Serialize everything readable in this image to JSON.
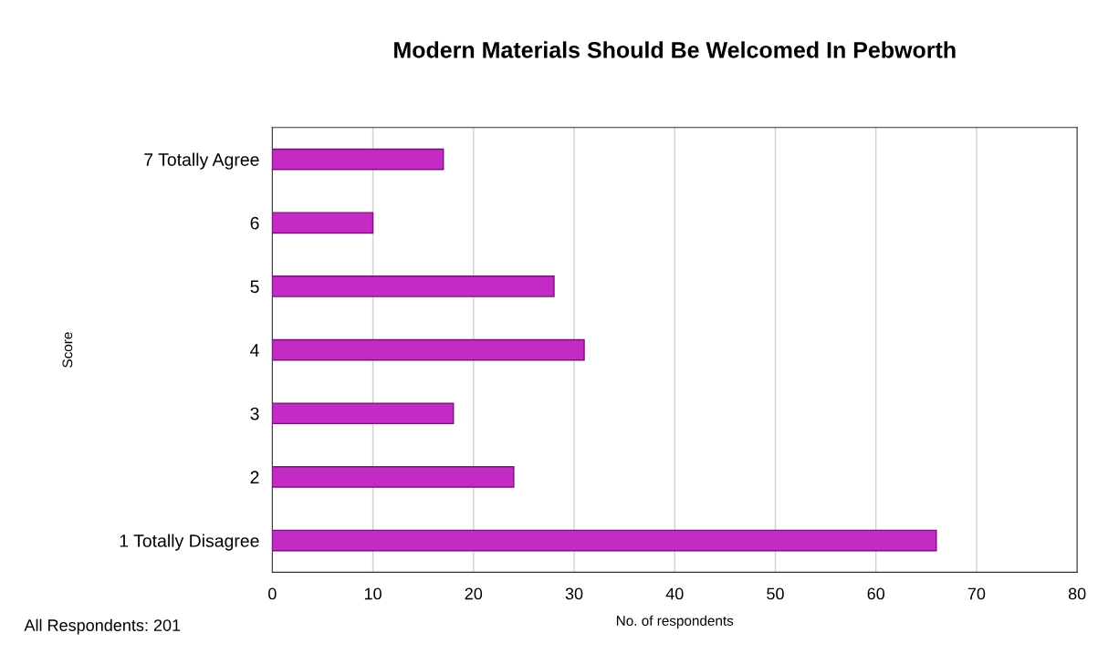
{
  "chart_data": {
    "type": "bar",
    "orientation": "horizontal",
    "title": "Modern Materials Should Be Welcomed In Pebworth",
    "xlabel": "No. of respondents",
    "ylabel": "Score",
    "categories": [
      "7 Totally Agree",
      "6",
      "5",
      "4",
      "3",
      "2",
      "1 Totally Disagree"
    ],
    "values": [
      17,
      10,
      28,
      31,
      18,
      24,
      66
    ],
    "color": "#c42ac4",
    "xlim": [
      0,
      80
    ],
    "xticks": [
      0,
      10,
      20,
      30,
      40,
      50,
      60,
      70,
      80
    ],
    "grid": "x",
    "annotations": [
      "All Respondents: 201"
    ]
  }
}
